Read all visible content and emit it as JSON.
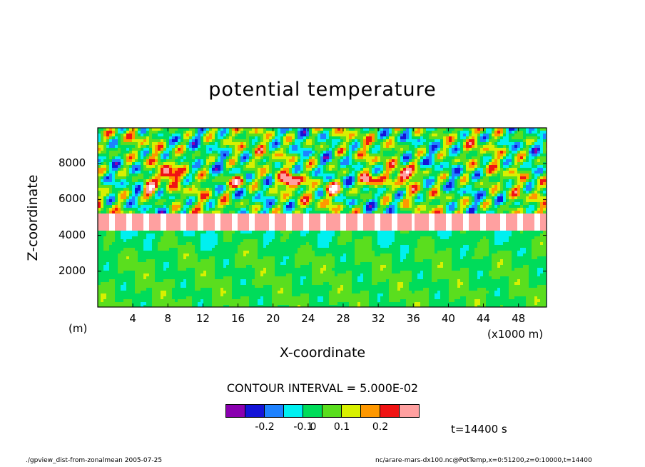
{
  "figure": {
    "title": "potential temperature",
    "contour_interval": "CONTOUR INTERVAL = 5.000E-02",
    "time_label": "t=14400 s",
    "footer_left": "./gpview_dist-from-zonalmean  2005-07-25",
    "footer_right": "nc/arare-mars-dx100.nc@PotTemp,x=0:51200,z=0:10000,t=14400"
  },
  "chart_data": {
    "type": "heatmap",
    "title": "potential temperature",
    "xlabel": "X-coordinate",
    "ylabel": "Z-coordinate",
    "x_unit_left": "(m)",
    "x_unit_right": "(x1000 m)",
    "x_ticks": [
      "4",
      "8",
      "12",
      "16",
      "20",
      "24",
      "28",
      "32",
      "36",
      "40",
      "44",
      "48"
    ],
    "y_ticks": [
      "2000",
      "4000",
      "6000",
      "8000"
    ],
    "xlim": [
      0,
      51200
    ],
    "ylim": [
      0,
      10000
    ],
    "contour_interval": 0.05,
    "color_levels": [
      {
        "color": "#8a00b0"
      },
      {
        "color": "#1414d8"
      },
      {
        "color": "#1e82ff"
      },
      {
        "color": "#00f0f0"
      },
      {
        "color": "#00dc5a"
      },
      {
        "color": "#5ade1e"
      },
      {
        "color": "#d8f000"
      },
      {
        "color": "#ff9800"
      },
      {
        "color": "#f01414"
      },
      {
        "color": "#ffa0a0"
      }
    ],
    "colorbar_labels": [
      "-0.2",
      "-0.1",
      "0",
      "0.1",
      "0.2"
    ],
    "approx_regions": [
      {
        "z_range": [
          0,
          4000
        ],
        "dominant_value": 0.0,
        "note": "green/cyan mottled lower layer"
      },
      {
        "z_range": [
          4400,
          5400
        ],
        "dominant_value": "out of range",
        "note": "white band with strong gradients"
      },
      {
        "z_range": [
          5400,
          9800
        ],
        "dominant_value": "mixed",
        "note": "green background with blue/red/orange cells"
      }
    ]
  }
}
